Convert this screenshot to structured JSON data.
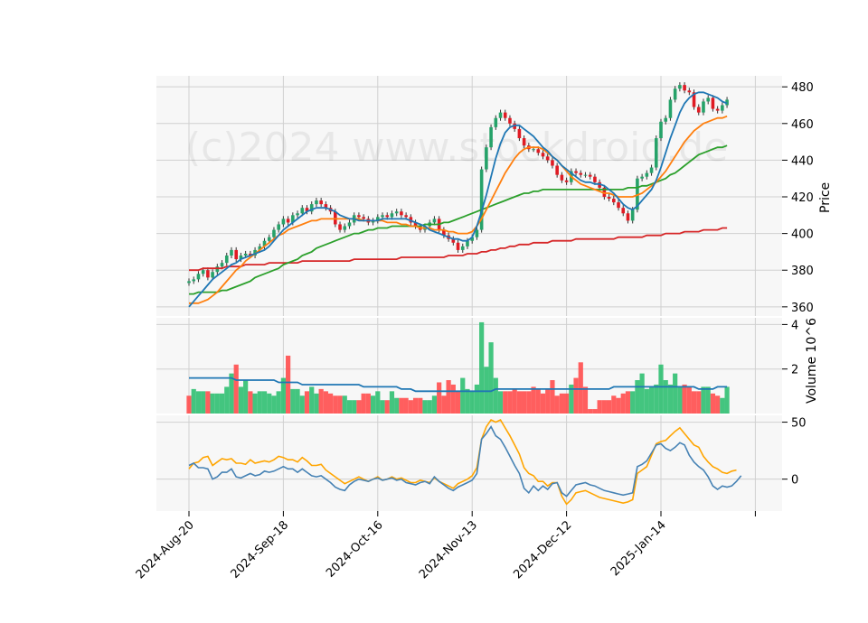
{
  "chart_data": {
    "type": "candlestick",
    "watermark": "(c)2024 www.stockdroid.de",
    "x_tick_labels": [
      "2024-Aug-20",
      "2024-Sep-18",
      "2024-Oct-16",
      "2024-Nov-13",
      "2024-Dec-12",
      "2025-Jan-14"
    ],
    "colors": {
      "up": "#26a269",
      "down": "#e01b24",
      "up_fill": "#2fbf71",
      "down_fill": "#ff4d4d",
      "ma_short": "#1f77b4",
      "ma_mid": "#ff7f0e",
      "ma_long": "#2ca02c",
      "ma_200": "#d62728",
      "osc_1": "#4682b4",
      "osc_2": "#ffa500",
      "panel_bg": "#f7f7f7",
      "grid": "#d0d0d0"
    },
    "price_panel": {
      "ylabel": "Price",
      "yticks": [
        360,
        380,
        400,
        420,
        440,
        460,
        480
      ],
      "ylim": [
        355,
        486
      ],
      "close": [
        374,
        375,
        378,
        380,
        376,
        379,
        382,
        384,
        388,
        391,
        386,
        388,
        389,
        388,
        391,
        393,
        396,
        398,
        402,
        405,
        408,
        406,
        410,
        411,
        414,
        412,
        416,
        418,
        416,
        414,
        412,
        405,
        402,
        404,
        406,
        410,
        409,
        408,
        406,
        407,
        409,
        410,
        409,
        411,
        412,
        410,
        409,
        406,
        404,
        402,
        404,
        406,
        408,
        402,
        399,
        397,
        395,
        391,
        393,
        396,
        398,
        402,
        435,
        447,
        458,
        463,
        466,
        463,
        460,
        457,
        452,
        448,
        446,
        446,
        444,
        442,
        440,
        437,
        432,
        429,
        428,
        434,
        433,
        432,
        432,
        431,
        428,
        425,
        420,
        419,
        417,
        414,
        411,
        407,
        413,
        430,
        431,
        433,
        436,
        452,
        461,
        463,
        473,
        479,
        481,
        478,
        477,
        469,
        466,
        472,
        474,
        468,
        467,
        470,
        473
      ],
      "ma_short": [
        360,
        363,
        366,
        369,
        372,
        375,
        377,
        379,
        381,
        383,
        384,
        386,
        387,
        388,
        389,
        390,
        391,
        393,
        396,
        399,
        402,
        404,
        406,
        408,
        410,
        412,
        413,
        414,
        414,
        414,
        413,
        412,
        410,
        409,
        408,
        408,
        407,
        407,
        407,
        407,
        407,
        408,
        408,
        408,
        408,
        408,
        408,
        407,
        406,
        405,
        404,
        402,
        401,
        400,
        399,
        398,
        397,
        397,
        396,
        396,
        398,
        404,
        412,
        421,
        431,
        441,
        449,
        455,
        458,
        459,
        459,
        457,
        455,
        453,
        450,
        447,
        445,
        442,
        440,
        437,
        435,
        433,
        431,
        429,
        428,
        428,
        427,
        427,
        426,
        424,
        422,
        419,
        416,
        414,
        413,
        415,
        418,
        421,
        424,
        429,
        436,
        444,
        452,
        459,
        466,
        471,
        474,
        476,
        477,
        477,
        476,
        475,
        474,
        472,
        471
      ],
      "ma_mid": [
        362,
        362,
        362,
        363,
        364,
        366,
        368,
        371,
        374,
        377,
        380,
        382,
        385,
        387,
        389,
        391,
        393,
        395,
        397,
        399,
        400,
        402,
        403,
        404,
        405,
        406,
        407,
        407,
        408,
        408,
        408,
        408,
        408,
        408,
        408,
        408,
        408,
        407,
        407,
        407,
        407,
        407,
        406,
        406,
        406,
        405,
        405,
        404,
        404,
        403,
        403,
        403,
        402,
        402,
        402,
        401,
        401,
        400,
        400,
        400,
        401,
        404,
        408,
        413,
        418,
        423,
        428,
        433,
        437,
        441,
        444,
        446,
        447,
        447,
        447,
        446,
        444,
        442,
        440,
        437,
        434,
        431,
        429,
        427,
        426,
        425,
        424,
        423,
        422,
        422,
        421,
        420,
        420,
        420,
        420,
        421,
        422,
        424,
        426,
        428,
        431,
        434,
        438,
        442,
        446,
        450,
        453,
        456,
        458,
        460,
        461,
        462,
        463,
        463,
        464
      ],
      "ma_long": [
        367,
        367,
        368,
        368,
        368,
        368,
        368,
        369,
        369,
        370,
        371,
        372,
        373,
        374,
        376,
        377,
        378,
        379,
        380,
        381,
        383,
        384,
        385,
        386,
        388,
        389,
        390,
        392,
        393,
        394,
        395,
        396,
        397,
        398,
        399,
        400,
        400,
        401,
        402,
        402,
        403,
        403,
        403,
        404,
        404,
        404,
        404,
        404,
        404,
        404,
        405,
        405,
        405,
        405,
        406,
        406,
        407,
        408,
        409,
        410,
        411,
        412,
        413,
        414,
        415,
        416,
        417,
        418,
        419,
        420,
        421,
        422,
        422,
        423,
        423,
        424,
        424,
        424,
        424,
        424,
        424,
        424,
        424,
        424,
        424,
        424,
        424,
        424,
        424,
        424,
        424,
        424,
        424,
        425,
        425,
        425,
        426,
        426,
        427,
        428,
        429,
        430,
        432,
        433,
        435,
        437,
        439,
        441,
        443,
        444,
        445,
        446,
        447,
        447,
        448
      ],
      "ma_200": [
        380,
        380,
        380,
        381,
        381,
        381,
        381,
        381,
        382,
        382,
        382,
        382,
        383,
        383,
        383,
        383,
        383,
        384,
        384,
        384,
        384,
        384,
        384,
        384,
        385,
        385,
        385,
        385,
        385,
        385,
        385,
        385,
        385,
        385,
        385,
        386,
        386,
        386,
        386,
        386,
        386,
        386,
        386,
        386,
        386,
        387,
        387,
        387,
        387,
        387,
        387,
        387,
        387,
        387,
        387,
        388,
        388,
        388,
        388,
        389,
        389,
        389,
        390,
        390,
        391,
        391,
        392,
        392,
        393,
        393,
        394,
        394,
        394,
        395,
        395,
        395,
        395,
        396,
        396,
        396,
        396,
        396,
        397,
        397,
        397,
        397,
        397,
        397,
        397,
        397,
        397,
        398,
        398,
        398,
        398,
        398,
        398,
        399,
        399,
        399,
        399,
        400,
        400,
        400,
        400,
        401,
        401,
        401,
        401,
        402,
        402,
        402,
        402,
        403,
        403
      ]
    },
    "volume_panel": {
      "ylabel": "Volume  10^6",
      "yticks": [
        2,
        4
      ],
      "ylim": [
        0,
        4.3
      ],
      "values": [
        0.8,
        1.1,
        1.0,
        1.0,
        1.0,
        0.9,
        0.9,
        0.9,
        1.2,
        1.8,
        2.2,
        1.2,
        1.5,
        1.0,
        0.9,
        1.0,
        1.0,
        0.9,
        0.8,
        1.0,
        1.6,
        2.6,
        1.1,
        1.1,
        0.8,
        1.0,
        1.2,
        0.9,
        1.1,
        1.0,
        0.9,
        0.8,
        0.8,
        0.8,
        0.6,
        0.6,
        0.6,
        0.9,
        0.9,
        0.8,
        1.0,
        0.6,
        0.6,
        1.0,
        0.7,
        0.7,
        0.7,
        0.6,
        0.7,
        0.7,
        0.6,
        0.6,
        0.8,
        1.4,
        0.8,
        1.5,
        1.3,
        1.0,
        1.6,
        1.1,
        1.0,
        1.3,
        4.1,
        2.1,
        3.2,
        1.6,
        1.0,
        1.0,
        1.0,
        1.1,
        1.0,
        1.0,
        1.0,
        1.2,
        1.1,
        0.9,
        1.1,
        1.5,
        0.8,
        0.9,
        0.9,
        1.3,
        1.6,
        2.3,
        1.2,
        0.2,
        0.2,
        0.6,
        0.6,
        0.6,
        0.8,
        0.7,
        0.9,
        1.0,
        1.0,
        1.5,
        1.8,
        1.1,
        1.2,
        1.3,
        2.2,
        1.5,
        1.3,
        1.8,
        1.2,
        1.3,
        1.2,
        1.0,
        1.0,
        1.2,
        1.2,
        0.9,
        0.8,
        0.7,
        1.2
      ],
      "up": [
        0,
        1,
        1,
        1,
        0,
        1,
        1,
        1,
        1,
        1,
        0,
        1,
        1,
        0,
        1,
        1,
        1,
        1,
        1,
        1,
        1,
        0,
        1,
        1,
        1,
        0,
        1,
        1,
        0,
        0,
        0,
        0,
        0,
        1,
        1,
        1,
        0,
        0,
        0,
        1,
        1,
        1,
        0,
        1,
        1,
        0,
        0,
        0,
        0,
        0,
        1,
        1,
        1,
        0,
        0,
        0,
        0,
        0,
        1,
        1,
        1,
        1,
        1,
        1,
        1,
        1,
        1,
        0,
        0,
        0,
        0,
        0,
        0,
        0,
        0,
        0,
        0,
        0,
        0,
        0,
        0,
        1,
        0,
        0,
        0,
        0,
        0,
        0,
        0,
        0,
        0,
        0,
        0,
        0,
        1,
        1,
        1,
        1,
        1,
        1,
        1,
        1,
        1,
        1,
        1,
        0,
        0,
        0,
        0,
        1,
        1,
        0,
        0,
        1,
        1
      ],
      "ma": [
        1.6,
        1.6,
        1.6,
        1.6,
        1.6,
        1.6,
        1.6,
        1.6,
        1.6,
        1.6,
        1.5,
        1.5,
        1.5,
        1.5,
        1.5,
        1.5,
        1.5,
        1.5,
        1.5,
        1.4,
        1.4,
        1.4,
        1.4,
        1.4,
        1.3,
        1.3,
        1.3,
        1.3,
        1.3,
        1.3,
        1.3,
        1.3,
        1.3,
        1.3,
        1.3,
        1.3,
        1.3,
        1.2,
        1.2,
        1.2,
        1.2,
        1.2,
        1.2,
        1.2,
        1.2,
        1.1,
        1.1,
        1.1,
        1.0,
        1.0,
        1.0,
        1.0,
        1.0,
        1.0,
        1.0,
        1.0,
        1.0,
        1.0,
        1.0,
        1.0,
        1.0,
        1.0,
        1.0,
        1.0,
        1.0,
        1.1,
        1.1,
        1.1,
        1.1,
        1.1,
        1.1,
        1.1,
        1.1,
        1.1,
        1.1,
        1.1,
        1.1,
        1.1,
        1.1,
        1.1,
        1.1,
        1.1,
        1.1,
        1.1,
        1.1,
        1.1,
        1.1,
        1.1,
        1.1,
        1.1,
        1.2,
        1.2,
        1.2,
        1.2,
        1.2,
        1.2,
        1.2,
        1.2,
        1.2,
        1.2,
        1.2,
        1.2,
        1.2,
        1.2,
        1.2,
        1.2,
        1.2,
        1.2,
        1.1,
        1.1,
        1.1,
        1.1,
        1.2,
        1.2,
        1.2
      ]
    },
    "oscillator_panel": {
      "yticks": [
        0,
        50
      ],
      "ylim": [
        -28,
        56
      ],
      "line_1": [
        12,
        14,
        10,
        10,
        9,
        0,
        2,
        6,
        6,
        9,
        2,
        1,
        3,
        5,
        3,
        4,
        7,
        6,
        7,
        9,
        11,
        9,
        9,
        6,
        9,
        6,
        3,
        2,
        3,
        0,
        -3,
        -7,
        -9,
        -10,
        -5,
        -2,
        0,
        -1,
        -2,
        0,
        1,
        -1,
        0,
        1,
        -1,
        0,
        -3,
        -4,
        -5,
        -3,
        -2,
        -4,
        2,
        -2,
        -5,
        -8,
        -10,
        -7,
        -5,
        -3,
        -1,
        5,
        35,
        40,
        46,
        38,
        35,
        28,
        20,
        12,
        5,
        -8,
        -12,
        -6,
        -10,
        -6,
        -9,
        -4,
        -3,
        -12,
        -15,
        -10,
        -5,
        -4,
        -3,
        -5,
        -6,
        -8,
        -10,
        -11,
        -12,
        -13,
        -14,
        -13,
        -12,
        11,
        13,
        16,
        23,
        30,
        31,
        27,
        25,
        28,
        32,
        30,
        21,
        15,
        11,
        8,
        2,
        -6,
        -9,
        -6,
        -7,
        -6,
        -2,
        3
      ],
      "line_2": [
        9,
        14,
        15,
        19,
        20,
        12,
        15,
        18,
        17,
        18,
        14,
        14,
        13,
        17,
        14,
        15,
        16,
        15,
        17,
        20,
        19,
        17,
        17,
        15,
        19,
        16,
        12,
        12,
        13,
        8,
        5,
        2,
        -1,
        -4,
        -2,
        0,
        2,
        0,
        -2,
        0,
        2,
        -1,
        0,
        2,
        0,
        1,
        -1,
        -3,
        -3,
        -1,
        -2,
        -3,
        1,
        -2,
        -4,
        -6,
        -8,
        -4,
        -2,
        0,
        3,
        10,
        35,
        46,
        52,
        50,
        52,
        45,
        38,
        30,
        22,
        10,
        5,
        3,
        -2,
        -2,
        -6,
        -3,
        -3,
        -15,
        -22,
        -18,
        -12,
        -11,
        -10,
        -12,
        -14,
        -16,
        -17,
        -18,
        -19,
        -20,
        -21,
        -20,
        -18,
        5,
        8,
        11,
        21,
        31,
        33,
        34,
        38,
        42,
        45,
        40,
        35,
        30,
        28,
        20,
        15,
        11,
        9,
        6,
        5,
        7,
        8
      ]
    }
  }
}
